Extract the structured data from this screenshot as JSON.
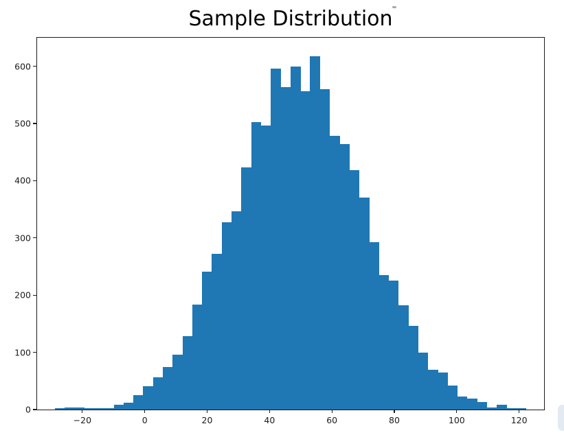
{
  "chart_data": {
    "type": "bar",
    "subtype": "histogram",
    "title": "Sample Distribution",
    "xlabel": "",
    "ylabel": "",
    "bin_start": -28.8,
    "bin_width": 3.146,
    "counts": [
      2,
      4,
      4,
      3,
      2,
      2,
      9,
      12,
      25,
      41,
      56,
      74,
      96,
      128,
      184,
      241,
      272,
      327,
      347,
      423,
      503,
      497,
      596,
      564,
      600,
      556,
      618,
      560,
      478,
      464,
      419,
      371,
      293,
      235,
      226,
      182,
      146,
      100,
      70,
      65,
      42,
      23,
      19,
      13,
      4,
      8,
      3,
      2
    ],
    "total_samples_approx": 10000,
    "xlim": [
      -34.5,
      128
    ],
    "ylim": [
      0,
      650
    ],
    "xticks": [
      -20,
      0,
      20,
      40,
      60,
      80,
      100,
      120
    ],
    "xtick_labels": [
      "−20",
      "0",
      "20",
      "40",
      "60",
      "80",
      "100",
      "120"
    ],
    "yticks": [
      0,
      100,
      200,
      300,
      400,
      500,
      600
    ],
    "ytick_labels": [
      "0",
      "100",
      "200",
      "300",
      "400",
      "500",
      "600"
    ],
    "grid": false,
    "legend": false,
    "colors": {
      "bar": "#1f77b4",
      "axis": "#1a1a1a",
      "text": "#1a1a1a",
      "background": "#ffffff"
    }
  },
  "artifacts": {
    "title_dot_color": "#a8a8a8",
    "right_edge_sliver_color": "#e3eaf1"
  }
}
